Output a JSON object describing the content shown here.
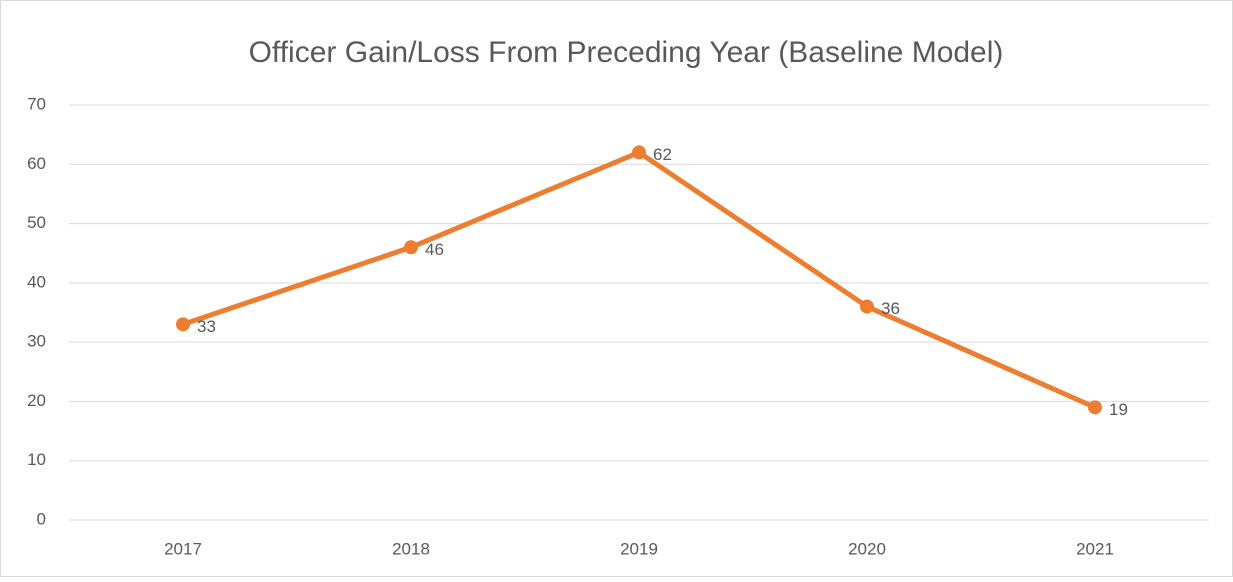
{
  "chart_data": {
    "type": "line",
    "title": "Officer Gain/Loss From Preceding Year (Baseline Model)",
    "categories": [
      "2017",
      "2018",
      "2019",
      "2020",
      "2021"
    ],
    "values": [
      33,
      46,
      62,
      36,
      19
    ],
    "color": "#ed7d31",
    "ylim": [
      0,
      70
    ],
    "yticks": [
      0,
      10,
      20,
      30,
      40,
      50,
      60,
      70
    ],
    "grid": true,
    "data_labels": true
  }
}
